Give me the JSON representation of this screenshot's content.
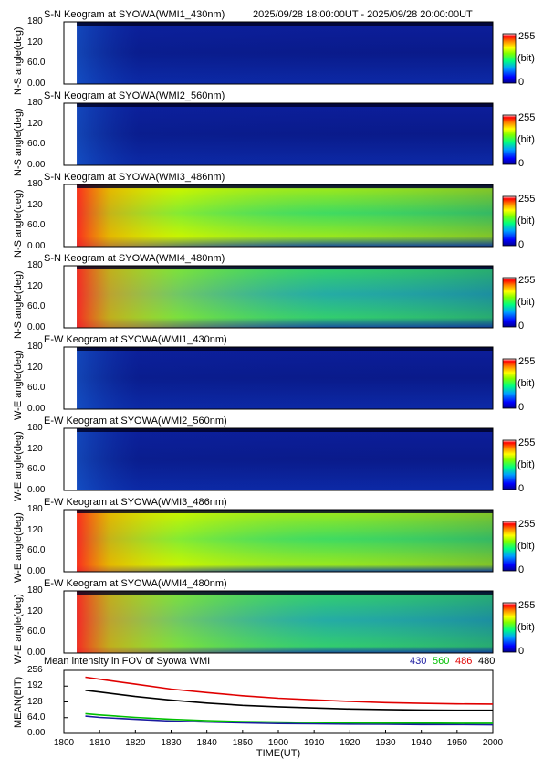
{
  "header": {
    "date_range": "2025/09/28 18:00:00UT - 2025/09/28 20:00:00UT"
  },
  "colorbar": {
    "max_label": "255",
    "unit_label": "(bit)",
    "min_label": "0"
  },
  "keogram_ticks": [
    "180",
    "120",
    "60.0",
    "0.00"
  ],
  "chart_data": [
    {
      "type": "heatmap",
      "title": "S-N Keogram at SYOWA(WMI1_430nm)",
      "ylabel": "N-S angle(deg)",
      "ylim": [
        0,
        180
      ],
      "xlim": [
        1800,
        2000
      ],
      "zlim": [
        0,
        255
      ],
      "data_start": 1806,
      "intensity": "low",
      "bands": [],
      "colors": {
        "cold": "#0a1a8f"
      }
    },
    {
      "type": "heatmap",
      "title": "S-N Keogram at SYOWA(WMI2_560nm)",
      "ylabel": "N-S angle(deg)",
      "ylim": [
        0,
        180
      ],
      "xlim": [
        1800,
        2000
      ],
      "zlim": [
        0,
        255
      ],
      "data_start": 1806,
      "intensity": "low",
      "bands": [],
      "colors": {
        "cold": "#0a1a8f"
      }
    },
    {
      "type": "heatmap",
      "title": "S-N Keogram at SYOWA(WMI3_486nm)",
      "ylabel": "N-S angle(deg)",
      "ylim": [
        0,
        180
      ],
      "xlim": [
        1800,
        2000
      ],
      "zlim": [
        0,
        255
      ],
      "data_start": 1806,
      "intensity": "high",
      "bands": [
        30,
        165
      ],
      "colors": {
        "cold": "#0a1a8f"
      }
    },
    {
      "type": "heatmap",
      "title": "S-N Keogram at SYOWA(WMI4_480nm)",
      "ylabel": "N-S angle(deg)",
      "ylim": [
        0,
        180
      ],
      "xlim": [
        1800,
        2000
      ],
      "zlim": [
        0,
        255
      ],
      "data_start": 1806,
      "intensity": "mid",
      "bands": [
        30,
        165
      ],
      "colors": {
        "cold": "#0a1a8f"
      }
    },
    {
      "type": "heatmap",
      "title": "E-W Keogram at SYOWA(WMI1_430nm)",
      "ylabel": "W-E angle(deg)",
      "ylim": [
        0,
        180
      ],
      "xlim": [
        1800,
        2000
      ],
      "zlim": [
        0,
        255
      ],
      "data_start": 1806,
      "intensity": "low",
      "bands": [],
      "colors": {
        "cold": "#0a1a8f"
      }
    },
    {
      "type": "heatmap",
      "title": "E-W Keogram at SYOWA(WMI2_560nm)",
      "ylabel": "W-E angle(deg)",
      "ylim": [
        0,
        180
      ],
      "xlim": [
        1800,
        2000
      ],
      "zlim": [
        0,
        255
      ],
      "data_start": 1806,
      "intensity": "low",
      "bands": [],
      "colors": {
        "cold": "#0a1a8f"
      }
    },
    {
      "type": "heatmap",
      "title": "E-W Keogram at SYOWA(WMI3_486nm)",
      "ylabel": "W-E angle(deg)",
      "ylim": [
        0,
        180
      ],
      "xlim": [
        1800,
        2000
      ],
      "zlim": [
        0,
        255
      ],
      "data_start": 1806,
      "intensity": "high",
      "bands": [
        20,
        170
      ],
      "colors": {
        "cold": "#0a1a8f"
      }
    },
    {
      "type": "heatmap",
      "title": "E-W Keogram at SYOWA(WMI4_480nm)",
      "ylabel": "W-E angle(deg)",
      "ylim": [
        0,
        180
      ],
      "xlim": [
        1800,
        2000
      ],
      "zlim": [
        0,
        255
      ],
      "data_start": 1806,
      "intensity": "mid",
      "bands": [
        20,
        170
      ],
      "colors": {
        "cold": "#0a1a8f"
      }
    },
    {
      "type": "line",
      "title": "Mean intensity in FOV of Syowa WMI",
      "ylabel": "MEAN(BIT)",
      "xlabel": "TIME(UT)",
      "ylim": [
        0,
        256
      ],
      "xlim": [
        1800,
        2000
      ],
      "yticks": [
        "256",
        "192",
        "128",
        "64.0",
        "0.00"
      ],
      "xticks": [
        "1800",
        "1810",
        "1820",
        "1830",
        "1840",
        "1850",
        "1900",
        "1910",
        "1920",
        "1930",
        "1940",
        "1950",
        "2000"
      ],
      "x_values": [
        1806,
        1810,
        1820,
        1830,
        1840,
        1850,
        1900,
        1910,
        1920,
        1930,
        1940,
        1950,
        2000
      ],
      "series": [
        {
          "name": "430",
          "color": "#1a1aa0",
          "values": [
            70,
            65,
            57,
            50,
            46,
            43,
            40,
            39,
            38,
            37,
            36,
            36,
            35
          ]
        },
        {
          "name": "560",
          "color": "#00c000",
          "values": [
            80,
            75,
            65,
            57,
            52,
            48,
            46,
            44,
            43,
            42,
            42,
            41,
            41
          ]
        },
        {
          "name": "486",
          "color": "#e00000",
          "values": [
            228,
            220,
            200,
            180,
            166,
            153,
            143,
            136,
            130,
            125,
            122,
            120,
            119
          ]
        },
        {
          "name": "480",
          "color": "#000000",
          "values": [
            175,
            168,
            150,
            135,
            123,
            114,
            108,
            103,
            99,
            97,
            95,
            94,
            94
          ]
        }
      ]
    }
  ]
}
